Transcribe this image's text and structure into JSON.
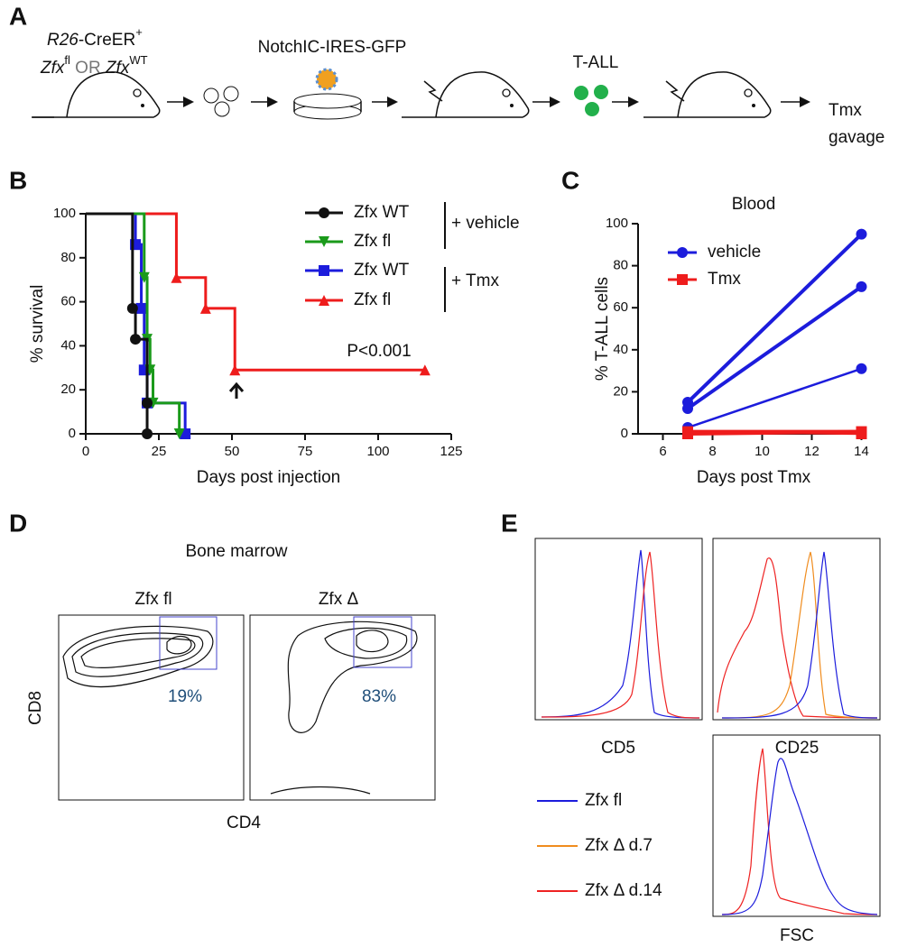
{
  "panel_labels": [
    "A",
    "B",
    "C",
    "D",
    "E"
  ],
  "panel_a": {
    "strain": [
      "R26",
      "-CreER",
      "+"
    ],
    "genotypes": [
      "Zfx",
      "fl",
      " OR ",
      "Zfx",
      "WT"
    ],
    "vector": "NotchIC-IRES-GFP",
    "cells": "T-ALL",
    "treatment": [
      "Tmx",
      "gavage"
    ]
  },
  "chart_data": [
    {
      "type": "survival",
      "y_label": "% survival",
      "x_label": "Days post injection",
      "xlim": [
        0,
        125
      ],
      "xticks": [
        0,
        25,
        50,
        75,
        100,
        125
      ],
      "ylim": [
        0,
        100
      ],
      "yticks": [
        0,
        20,
        40,
        60,
        80,
        100
      ],
      "series": [
        {
          "name": "Zfx WT",
          "color": "#111111",
          "marker": "circle",
          "x": [
            0,
            16,
            17,
            21,
            21
          ],
          "values": [
            100,
            57,
            43,
            14,
            0
          ]
        },
        {
          "name": "Zfx fl",
          "color": "#1a9a1a",
          "marker": "triangle-down",
          "x": [
            0,
            20,
            21,
            22,
            23,
            32
          ],
          "values": [
            100,
            71,
            43,
            29,
            14,
            0
          ]
        },
        {
          "name": "Zfx WT",
          "color": "#1c1cdc",
          "marker": "square",
          "x": [
            0,
            17,
            19,
            20,
            21,
            34
          ],
          "values": [
            100,
            86,
            57,
            29,
            14,
            0
          ]
        },
        {
          "name": "Zfx fl",
          "color": "#ee1c1c",
          "marker": "triangle-up",
          "x": [
            0,
            31,
            41,
            51,
            116
          ],
          "values": [
            100,
            71,
            57,
            29,
            29
          ]
        }
      ],
      "groups": [
        "+ vehicle",
        "+ Tmx"
      ],
      "annotation": "P<0.001"
    },
    {
      "type": "line",
      "title": "Blood",
      "y_label": "% T-ALL cells",
      "x_label": "Days post Tmx",
      "xlim": [
        5,
        14.2
      ],
      "xticks": [
        6,
        8,
        10,
        12,
        14
      ],
      "ylim": [
        0,
        100
      ],
      "yticks": [
        0,
        20,
        40,
        60,
        80,
        100
      ],
      "x": [
        7,
        14
      ],
      "series": [
        {
          "name": "vehicle",
          "color": "#1c1cdc",
          "lines": [
            [
              15,
              95
            ],
            [
              12,
              70
            ],
            [
              3,
              31
            ]
          ]
        },
        {
          "name": "Tmx",
          "color": "#ee1c1c",
          "lines": [
            [
              1,
              1
            ],
            [
              0,
              1
            ],
            [
              1,
              0
            ]
          ]
        }
      ]
    }
  ],
  "panel_d": {
    "title": "Bone marrow",
    "plots": [
      {
        "label": "Zfx fl",
        "gate": "19%"
      },
      {
        "label": "Zfx Δ",
        "gate": "83%"
      }
    ],
    "y_label": "CD8",
    "x_label": "CD4"
  },
  "panel_e": {
    "plots": [
      "CD5",
      "CD25",
      "FSC"
    ],
    "legend": [
      {
        "name": "Zfx fl",
        "color": "#1c1cdc"
      },
      {
        "name": "Zfx Δ d.7",
        "color": "#f08c1e"
      },
      {
        "name": "Zfx Δ d.14",
        "color": "#ee2222"
      }
    ]
  }
}
